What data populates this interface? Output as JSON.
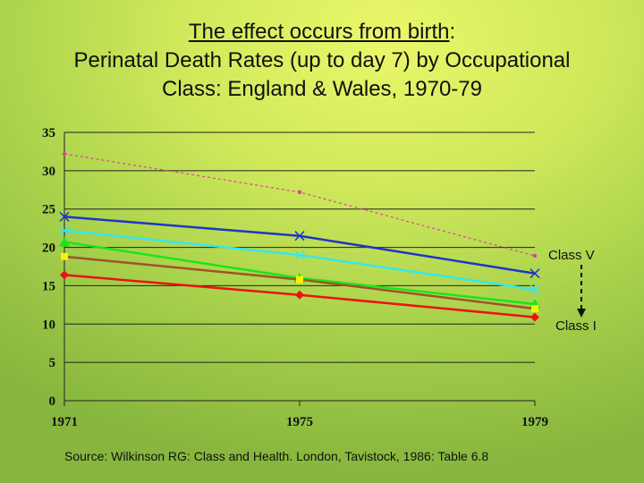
{
  "title": {
    "line1_underlined": "The effect occurs from birth",
    "line1_suffix": ":",
    "line2": "Perinatal Death Rates (up to day 7) by Occupational",
    "line3": "Class: England & Wales, 1970-79"
  },
  "source": "Source: Wilkinson RG: Class and Health.  London, Tavistock, 1986: Table 6.8",
  "chart_data": {
    "type": "line",
    "x": [
      "1971",
      "1975",
      "1979"
    ],
    "ylim": [
      0,
      35
    ],
    "yticks": [
      0,
      5,
      10,
      15,
      20,
      25,
      30,
      35
    ],
    "grid": true,
    "xlabel": "",
    "ylabel": "",
    "series": [
      {
        "values": [
          32.2,
          27.2,
          18.9
        ],
        "color": "#e0409a",
        "marker": "dot",
        "dashed": true
      },
      {
        "values": [
          24.0,
          21.5,
          16.6
        ],
        "color": "#1f35c8",
        "marker": "x"
      },
      {
        "values": [
          22.2,
          19.0,
          14.5
        ],
        "color": "#39e6ea",
        "marker": "x"
      },
      {
        "values": [
          20.7,
          16.0,
          12.6
        ],
        "color": "#19e619",
        "marker": "triangle"
      },
      {
        "values": [
          18.8,
          15.8,
          12.0
        ],
        "color": "#a0522d",
        "marker": "square",
        "marker_color": "#f5f500"
      },
      {
        "values": [
          16.4,
          13.8,
          10.9
        ],
        "color": "#ee1111",
        "marker": "diamond"
      }
    ],
    "annotations": {
      "top_label": "Class  V",
      "bottom_label": "Class  I"
    }
  }
}
